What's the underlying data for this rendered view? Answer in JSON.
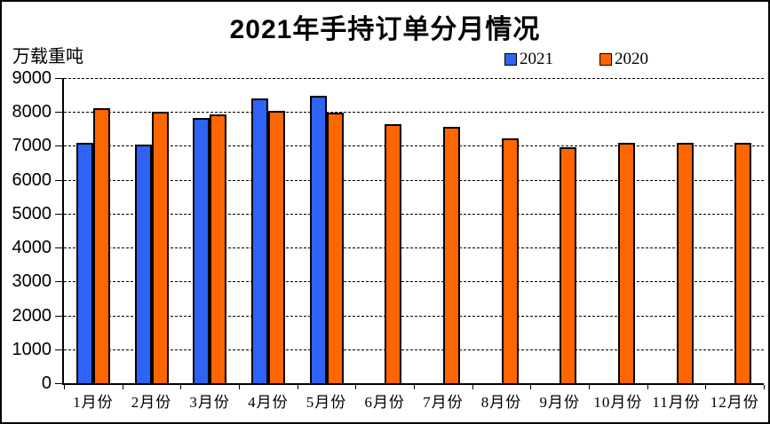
{
  "title": "2021年手持订单分月情况",
  "y_axis_unit": "万载重吨",
  "chart_data": {
    "type": "bar",
    "title": "2021年手持订单分月情况",
    "xlabel": "",
    "ylabel": "万载重吨",
    "categories": [
      "1月份",
      "2月份",
      "3月份",
      "4月份",
      "5月份",
      "6月份",
      "7月份",
      "8月份",
      "9月份",
      "10月份",
      "11月份",
      "12月份"
    ],
    "series": [
      {
        "name": "2021",
        "color": "#2E63F6",
        "values": [
          7090,
          7050,
          7820,
          8390,
          8480,
          null,
          null,
          null,
          null,
          null,
          null,
          null
        ]
      },
      {
        "name": "2020",
        "color": "#FF6600",
        "values": [
          8110,
          8010,
          7920,
          8030,
          7990,
          7650,
          7550,
          7230,
          6960,
          7080,
          7080,
          7100
        ]
      }
    ],
    "ylim": [
      0,
      9000
    ],
    "ytick_step": 1000,
    "ytick_labels": [
      "0",
      "1000",
      "2000",
      "3000",
      "4000",
      "5000",
      "6000",
      "7000",
      "8000",
      "9000"
    ],
    "grid": "horizontal-dashed",
    "legend_position": "top-right",
    "bar_outline_color": "#000000",
    "background_color": "#FFFFFF"
  }
}
